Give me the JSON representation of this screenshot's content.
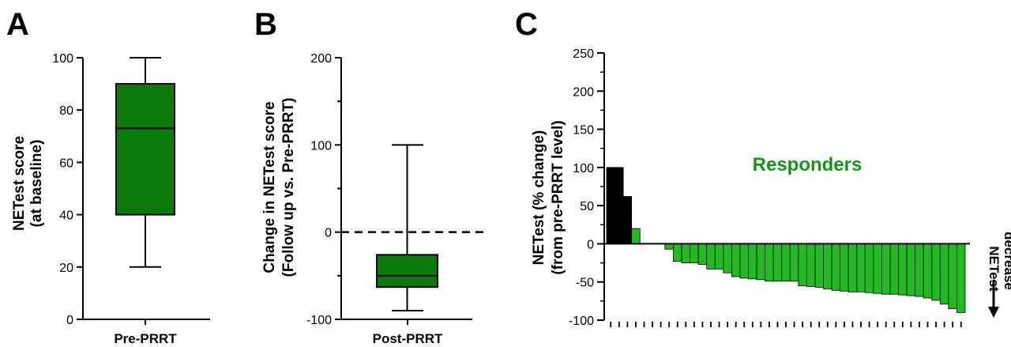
{
  "colors": {
    "box_dark_green": "#0a7a0a",
    "bar_bright_green": "#22bb22",
    "bar_black": "#000000",
    "annotation_green": "#109910"
  },
  "chart_data": [
    {
      "panel": "A",
      "type": "box",
      "categories": [
        "Pre-PRRT"
      ],
      "ylabel_line1": "NETest score",
      "ylabel_line2": "(at baseline)",
      "ylim": [
        0,
        100
      ],
      "yticks": [
        0,
        20,
        40,
        60,
        80,
        100
      ],
      "box": {
        "min": 20,
        "q1": 40,
        "median": 73,
        "q3": 90,
        "max": 100
      }
    },
    {
      "panel": "B",
      "type": "box",
      "categories": [
        "Post-PRRT"
      ],
      "ylabel_line1": "Change in NETest score",
      "ylabel_line2": "(Follow up vs. Pre-PRRT)",
      "ylim": [
        -100,
        200
      ],
      "yticks": [
        -100,
        0,
        100,
        200
      ],
      "reference_line": 0,
      "box": {
        "min": -90,
        "q1": -63,
        "median": -50,
        "q3": -26,
        "max": 100
      }
    },
    {
      "panel": "C",
      "type": "bar",
      "ylabel_line1": "NETest (% change)",
      "ylabel_line2": "(from pre-PRRT level)",
      "ylim": [
        -100,
        250
      ],
      "yticks": [
        -100,
        -50,
        0,
        50,
        100,
        150,
        200,
        250
      ],
      "annotation": "Responders",
      "side_label_line1": "NETest",
      "side_label_line2": "decrease",
      "values": [
        100,
        100,
        62,
        20,
        0,
        0,
        0,
        -7,
        -23,
        -25,
        -25,
        -27,
        -33,
        -33,
        -38,
        -43,
        -45,
        -46,
        -47,
        -49,
        -49,
        -49,
        -49,
        -55,
        -56,
        -57,
        -59,
        -61,
        -62,
        -63,
        -63,
        -64,
        -65,
        -66,
        -66,
        -67,
        -68,
        -69,
        -71,
        -74,
        -79,
        -85,
        -90
      ],
      "bar_colors": [
        "black",
        "black",
        "black",
        "green",
        "green",
        "green",
        "green",
        "green",
        "green",
        "green",
        "green",
        "green",
        "green",
        "green",
        "green",
        "green",
        "green",
        "green",
        "green",
        "green",
        "green",
        "green",
        "green",
        "green",
        "green",
        "green",
        "green",
        "green",
        "green",
        "green",
        "green",
        "green",
        "green",
        "green",
        "green",
        "green",
        "green",
        "green",
        "green",
        "green",
        "green",
        "green",
        "green"
      ]
    }
  ]
}
